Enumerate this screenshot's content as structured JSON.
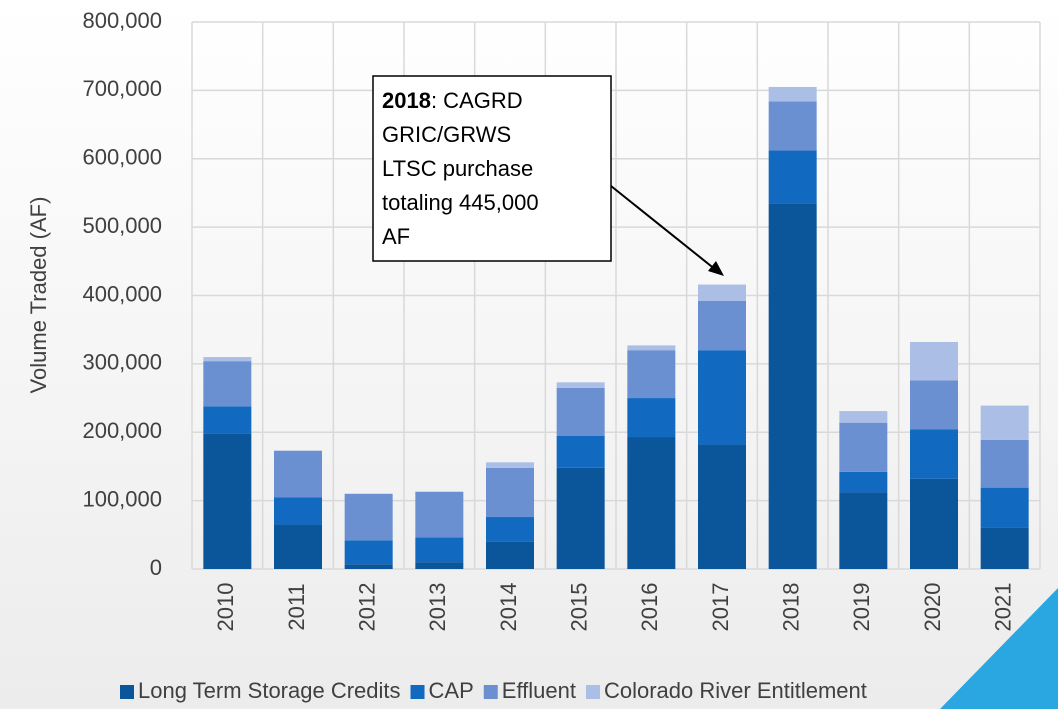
{
  "chart_data": {
    "type": "stacked_bar",
    "y_axis_label": "Volume Traded (AF)",
    "categories": [
      "2010",
      "2011",
      "2012",
      "2013",
      "2014",
      "2015",
      "2016",
      "2017",
      "2018",
      "2019",
      "2020",
      "2021"
    ],
    "series": [
      {
        "name": "Long Term Storage Credits",
        "color": "#0b559a",
        "values": [
          198000,
          65000,
          7000,
          10000,
          40000,
          148000,
          193000,
          182000,
          535000,
          112000,
          132000,
          61000
        ]
      },
      {
        "name": "CAP",
        "color": "#1269c0",
        "values": [
          40000,
          40000,
          35000,
          36000,
          36000,
          47000,
          57000,
          138000,
          77000,
          30000,
          72000,
          58000
        ]
      },
      {
        "name": "Effluent",
        "color": "#6b90d2",
        "values": [
          66000,
          68000,
          68000,
          67000,
          72000,
          70000,
          70000,
          72000,
          72000,
          72000,
          72000,
          70000
        ]
      },
      {
        "name": "Colorado River Entitlement",
        "color": "#abbfe6",
        "values": [
          6000,
          0,
          0,
          0,
          8000,
          8000,
          7000,
          24000,
          21000,
          17000,
          56000,
          50000
        ]
      }
    ],
    "ylim": [
      0,
      800000
    ],
    "yticks": [
      0,
      {
        "value": 100000,
        "label": "100,000"
      },
      {
        "value": 200000,
        "label": "200,000"
      },
      {
        "value": 300000,
        "label": "300,000"
      },
      {
        "value": 400000,
        "label": "400,000"
      },
      {
        "value": 500000,
        "label": "500,000"
      },
      {
        "value": 600000,
        "label": "600,000"
      },
      {
        "value": 700000,
        "label": "700,000"
      },
      {
        "value": 800000,
        "label": "800,000"
      }
    ],
    "grid": true,
    "legend": "bottom",
    "annotation": {
      "bold": "2018",
      "lines": [
        ": CAGRD",
        "GRIC/GRWS",
        "LTSC purchase",
        "totaling 445,000",
        "AF"
      ]
    }
  }
}
